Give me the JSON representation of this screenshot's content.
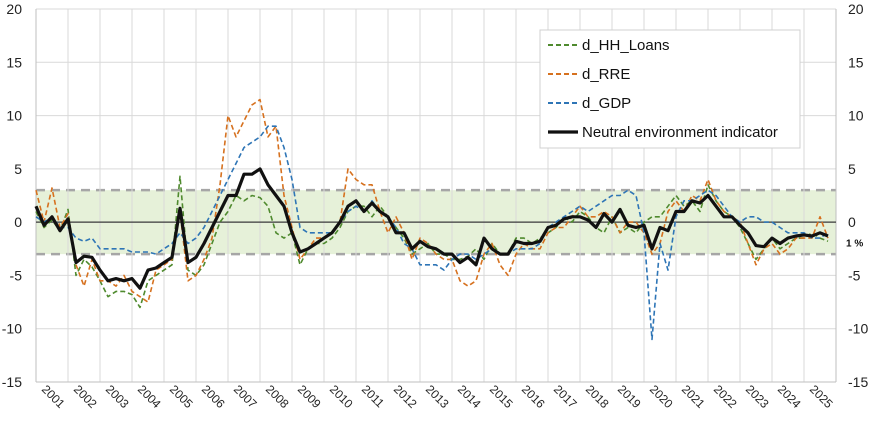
{
  "chart_data": {
    "type": "line",
    "title": "",
    "xlabel": "",
    "ylabel": "",
    "ylim": [
      -15,
      20
    ],
    "yticks": [
      20,
      15,
      10,
      5,
      0,
      -5,
      -10,
      -15
    ],
    "x_start": 2001.0,
    "x_end": 2026.0,
    "years": [
      "2001",
      "2002",
      "2003",
      "2004",
      "2005",
      "2006",
      "2007",
      "2008",
      "2009",
      "2010",
      "2011",
      "2012",
      "2013",
      "2014",
      "2015",
      "2016",
      "2017",
      "2018",
      "2019",
      "2020",
      "2021",
      "2022",
      "2023",
      "2024",
      "2025"
    ],
    "band": {
      "lower": -3,
      "upper": 3,
      "label": "1 %"
    },
    "grid": true,
    "legend_position": "top-right",
    "series": [
      {
        "name": "d_HH_Loans",
        "color": "#4f8a2e",
        "dash": true,
        "x": [
          2001.0,
          2001.25,
          2001.5,
          2001.75,
          2002.0,
          2002.25,
          2002.5,
          2002.75,
          2003.0,
          2003.25,
          2003.5,
          2003.75,
          2004.0,
          2004.25,
          2004.5,
          2004.75,
          2005.0,
          2005.25,
          2005.5,
          2005.75,
          2006.0,
          2006.25,
          2006.5,
          2006.75,
          2007.0,
          2007.25,
          2007.5,
          2007.75,
          2008.0,
          2008.25,
          2008.5,
          2008.75,
          2009.0,
          2009.25,
          2009.5,
          2009.75,
          2010.0,
          2010.25,
          2010.5,
          2010.75,
          2011.0,
          2011.25,
          2011.5,
          2011.75,
          2012.0,
          2012.25,
          2012.5,
          2012.75,
          2013.0,
          2013.25,
          2013.5,
          2013.75,
          2014.0,
          2014.25,
          2014.5,
          2014.75,
          2015.0,
          2015.25,
          2015.5,
          2015.75,
          2016.0,
          2016.25,
          2016.5,
          2016.75,
          2017.0,
          2017.25,
          2017.5,
          2017.75,
          2018.0,
          2018.25,
          2018.5,
          2018.75,
          2019.0,
          2019.25,
          2019.5,
          2019.75,
          2020.0,
          2020.25,
          2020.5,
          2020.75,
          2021.0,
          2021.25,
          2021.5,
          2021.75,
          2022.0,
          2022.25,
          2022.5,
          2022.75,
          2023.0,
          2023.25,
          2023.5,
          2023.75,
          2024.0,
          2024.25,
          2024.5,
          2024.75,
          2025.0,
          2025.25,
          2025.5,
          2025.75
        ],
        "y": [
          1.0,
          -0.5,
          0.2,
          -0.8,
          1.2,
          -5.0,
          -3.5,
          -4.2,
          -5.5,
          -7.0,
          -6.5,
          -6.5,
          -6.8,
          -8.0,
          -5.5,
          -5.0,
          -4.5,
          -4.0,
          4.3,
          -4.5,
          -5.0,
          -4.0,
          -2.0,
          0.0,
          1.0,
          2.5,
          2.0,
          2.5,
          2.3,
          1.5,
          -1.0,
          -1.5,
          -1.0,
          -4.0,
          -2.5,
          -2.0,
          -2.0,
          -1.5,
          -0.5,
          1.0,
          1.5,
          1.5,
          0.5,
          1.5,
          0.5,
          -0.5,
          -1.5,
          -3.0,
          -2.5,
          -2.0,
          -3.0,
          -3.0,
          -3.5,
          -3.5,
          -3.2,
          -2.5,
          -3.5,
          -2.0,
          -3.0,
          -3.0,
          -1.5,
          -1.5,
          -2.0,
          -1.5,
          -1.0,
          -0.5,
          0.5,
          0.0,
          1.0,
          0.5,
          -0.5,
          -1.0,
          0.5,
          -1.0,
          -0.5,
          -1.0,
          0.0,
          0.5,
          0.5,
          1.5,
          2.5,
          1.5,
          2.0,
          1.0,
          3.5,
          2.0,
          1.0,
          0.5,
          -0.5,
          -2.0,
          -3.5,
          -2.5,
          -1.5,
          -2.5,
          -2.0,
          -1.5,
          -1.5,
          -1.0,
          -1.5,
          -1.8
        ]
      },
      {
        "name": "d_RRE",
        "color": "#d6711f",
        "dash": true,
        "x": [
          2001.0,
          2001.25,
          2001.5,
          2001.75,
          2002.0,
          2002.25,
          2002.5,
          2002.75,
          2003.0,
          2003.25,
          2003.5,
          2003.75,
          2004.0,
          2004.25,
          2004.5,
          2004.75,
          2005.0,
          2005.25,
          2005.5,
          2005.75,
          2006.0,
          2006.25,
          2006.5,
          2006.75,
          2007.0,
          2007.25,
          2007.5,
          2007.75,
          2008.0,
          2008.25,
          2008.5,
          2008.75,
          2009.0,
          2009.25,
          2009.5,
          2009.75,
          2010.0,
          2010.25,
          2010.5,
          2010.75,
          2011.0,
          2011.25,
          2011.5,
          2011.75,
          2012.0,
          2012.25,
          2012.5,
          2012.75,
          2013.0,
          2013.25,
          2013.5,
          2013.75,
          2014.0,
          2014.25,
          2014.5,
          2014.75,
          2015.0,
          2015.25,
          2015.5,
          2015.75,
          2016.0,
          2016.25,
          2016.5,
          2016.75,
          2017.0,
          2017.25,
          2017.5,
          2017.75,
          2018.0,
          2018.25,
          2018.5,
          2018.75,
          2019.0,
          2019.25,
          2019.5,
          2019.75,
          2020.0,
          2020.25,
          2020.5,
          2020.75,
          2021.0,
          2021.25,
          2021.5,
          2021.75,
          2022.0,
          2022.25,
          2022.5,
          2022.75,
          2023.0,
          2023.25,
          2023.5,
          2023.75,
          2024.0,
          2024.25,
          2024.5,
          2024.75,
          2025.0,
          2025.25,
          2025.5,
          2025.75
        ],
        "y": [
          3.0,
          0.0,
          3.2,
          -0.5,
          0.8,
          -4.0,
          -6.0,
          -3.5,
          -5.5,
          -5.5,
          -6.0,
          -5.0,
          -6.5,
          -7.0,
          -7.5,
          -4.5,
          -4.0,
          -3.5,
          1.0,
          -5.5,
          -5.0,
          -3.5,
          -1.5,
          3.5,
          10.0,
          8.0,
          9.5,
          11.0,
          11.5,
          8.0,
          9.0,
          2.5,
          -0.5,
          -3.5,
          -2.5,
          -1.5,
          -1.5,
          -1.0,
          0.0,
          5.0,
          4.0,
          3.5,
          3.5,
          1.0,
          -1.0,
          0.5,
          -1.0,
          -3.5,
          -1.5,
          -2.0,
          -3.0,
          -3.5,
          -3.5,
          -5.5,
          -6.0,
          -5.5,
          -3.0,
          -2.0,
          -4.0,
          -5.0,
          -3.0,
          -2.0,
          -2.5,
          -2.5,
          -1.0,
          -0.5,
          -0.5,
          0.5,
          1.5,
          0.5,
          0.5,
          1.0,
          0.5,
          -1.0,
          0.0,
          0.0,
          -1.0,
          -3.0,
          -2.0,
          1.0,
          2.0,
          1.0,
          2.5,
          2.0,
          4.0,
          2.0,
          1.0,
          0.5,
          0.0,
          -2.0,
          -4.0,
          -2.5,
          -2.0,
          -3.0,
          -2.5,
          -1.5,
          -1.5,
          -1.5,
          0.5,
          -1.5
        ]
      },
      {
        "name": "d_GDP",
        "color": "#2e75b6",
        "dash": true,
        "x": [
          2001.0,
          2001.25,
          2001.5,
          2001.75,
          2002.0,
          2002.25,
          2002.5,
          2002.75,
          2003.0,
          2003.25,
          2003.5,
          2003.75,
          2004.0,
          2004.25,
          2004.5,
          2004.75,
          2005.0,
          2005.25,
          2005.5,
          2005.75,
          2006.0,
          2006.25,
          2006.5,
          2006.75,
          2007.0,
          2007.25,
          2007.5,
          2007.75,
          2008.0,
          2008.25,
          2008.5,
          2008.75,
          2009.0,
          2009.25,
          2009.5,
          2009.75,
          2010.0,
          2010.25,
          2010.5,
          2010.75,
          2011.0,
          2011.25,
          2011.5,
          2011.75,
          2012.0,
          2012.25,
          2012.5,
          2012.75,
          2013.0,
          2013.25,
          2013.5,
          2013.75,
          2014.0,
          2014.25,
          2014.5,
          2014.75,
          2015.0,
          2015.25,
          2015.5,
          2015.75,
          2016.0,
          2016.25,
          2016.5,
          2016.75,
          2017.0,
          2017.25,
          2017.5,
          2017.75,
          2018.0,
          2018.25,
          2018.5,
          2018.75,
          2019.0,
          2019.25,
          2019.5,
          2019.75,
          2020.0,
          2020.25,
          2020.5,
          2020.75,
          2021.0,
          2021.25,
          2021.5,
          2021.75,
          2022.0,
          2022.25,
          2022.5,
          2022.75,
          2023.0,
          2023.25,
          2023.5,
          2023.75,
          2024.0,
          2024.25,
          2024.5,
          2024.75,
          2025.0,
          2025.25,
          2025.5,
          2025.75
        ],
        "y": [
          0.5,
          0.0,
          0.5,
          -0.5,
          -0.5,
          -1.5,
          -1.8,
          -1.5,
          -2.5,
          -2.5,
          -2.5,
          -2.5,
          -2.8,
          -2.8,
          -2.8,
          -3.0,
          -2.5,
          -2.0,
          -1.0,
          -2.0,
          -1.5,
          -0.5,
          1.0,
          2.5,
          4.0,
          5.5,
          7.0,
          7.5,
          8.0,
          9.0,
          9.0,
          7.0,
          4.0,
          -0.5,
          -1.0,
          -1.0,
          -1.0,
          -1.0,
          0.0,
          1.0,
          1.5,
          1.0,
          2.0,
          1.0,
          0.5,
          -0.5,
          -2.0,
          -2.5,
          -4.0,
          -4.0,
          -4.0,
          -4.5,
          -3.5,
          -3.0,
          -3.0,
          -3.5,
          -3.0,
          -2.5,
          -3.0,
          -3.0,
          -2.5,
          -2.5,
          -2.5,
          -2.0,
          -0.5,
          0.0,
          0.5,
          1.0,
          1.5,
          1.0,
          1.5,
          2.0,
          2.5,
          2.5,
          3.0,
          2.5,
          -1.0,
          -11.0,
          -2.0,
          -4.5,
          0.5,
          2.0,
          2.0,
          2.5,
          3.0,
          2.5,
          1.5,
          0.5,
          0.0,
          0.5,
          0.5,
          0.0,
          0.0,
          -0.5,
          -1.0,
          -1.0,
          -1.0,
          -1.5,
          -1.5,
          -1.0
        ]
      },
      {
        "name": "Neutral environment indicator",
        "color": "#111111",
        "dash": false,
        "x": [
          2001.0,
          2001.25,
          2001.5,
          2001.75,
          2002.0,
          2002.25,
          2002.5,
          2002.75,
          2003.0,
          2003.25,
          2003.5,
          2003.75,
          2004.0,
          2004.25,
          2004.5,
          2004.75,
          2005.0,
          2005.25,
          2005.5,
          2005.75,
          2006.0,
          2006.25,
          2006.5,
          2006.75,
          2007.0,
          2007.25,
          2007.5,
          2007.75,
          2008.0,
          2008.25,
          2008.5,
          2008.75,
          2009.0,
          2009.25,
          2009.5,
          2009.75,
          2010.0,
          2010.25,
          2010.5,
          2010.75,
          2011.0,
          2011.25,
          2011.5,
          2011.75,
          2012.0,
          2012.25,
          2012.5,
          2012.75,
          2013.0,
          2013.25,
          2013.5,
          2013.75,
          2014.0,
          2014.25,
          2014.5,
          2014.75,
          2015.0,
          2015.25,
          2015.5,
          2015.75,
          2016.0,
          2016.25,
          2016.5,
          2016.75,
          2017.0,
          2017.25,
          2017.5,
          2017.75,
          2018.0,
          2018.25,
          2018.5,
          2018.75,
          2019.0,
          2019.25,
          2019.5,
          2019.75,
          2020.0,
          2020.25,
          2020.5,
          2020.75,
          2021.0,
          2021.25,
          2021.5,
          2021.75,
          2022.0,
          2022.25,
          2022.5,
          2022.75,
          2023.0,
          2023.25,
          2023.5,
          2023.75,
          2024.0,
          2024.25,
          2024.5,
          2024.75,
          2025.0,
          2025.25,
          2025.5,
          2025.75
        ],
        "y": [
          1.5,
          -0.3,
          0.5,
          -0.8,
          0.3,
          -3.8,
          -3.2,
          -3.3,
          -4.5,
          -5.5,
          -5.3,
          -5.5,
          -5.3,
          -6.2,
          -4.5,
          -4.3,
          -3.8,
          -3.3,
          1.3,
          -3.8,
          -3.3,
          -2.0,
          -0.5,
          1.0,
          2.5,
          2.5,
          4.5,
          4.5,
          5.0,
          3.5,
          2.5,
          1.5,
          -1.0,
          -2.8,
          -2.5,
          -2.0,
          -1.5,
          -1.0,
          0.0,
          1.5,
          2.0,
          1.0,
          1.8,
          1.0,
          0.5,
          -1.0,
          -1.0,
          -2.5,
          -1.8,
          -2.3,
          -2.5,
          -3.0,
          -3.0,
          -3.8,
          -3.3,
          -4.0,
          -1.5,
          -2.5,
          -3.0,
          -3.0,
          -1.8,
          -2.0,
          -2.0,
          -1.8,
          -0.5,
          -0.3,
          0.3,
          0.5,
          0.5,
          0.2,
          -0.5,
          0.8,
          0.0,
          1.2,
          -0.3,
          -0.5,
          -0.3,
          -2.5,
          -0.5,
          -0.8,
          1.0,
          1.0,
          2.0,
          1.8,
          2.5,
          1.5,
          0.5,
          0.5,
          -0.3,
          -1.0,
          -2.2,
          -2.3,
          -1.5,
          -2.0,
          -1.5,
          -1.3,
          -1.2,
          -1.3,
          -1.0,
          -1.3
        ]
      }
    ]
  }
}
